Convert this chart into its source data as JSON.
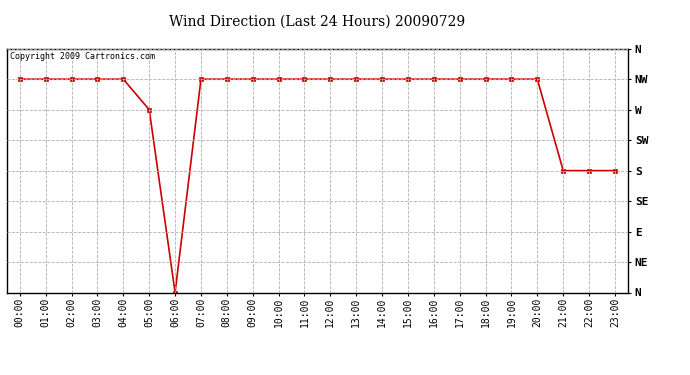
{
  "title": "Wind Direction (Last 24 Hours) 20090729",
  "copyright_text": "Copyright 2009 Cartronics.com",
  "line_color": "#cc0000",
  "marker": "s",
  "marker_size": 3,
  "background_color": "#ffffff",
  "grid_color": "#b0b0b0",
  "x_labels": [
    "00:00",
    "01:00",
    "02:00",
    "03:00",
    "04:00",
    "05:00",
    "06:00",
    "07:00",
    "08:00",
    "09:00",
    "10:00",
    "11:00",
    "12:00",
    "13:00",
    "14:00",
    "15:00",
    "16:00",
    "17:00",
    "18:00",
    "19:00",
    "20:00",
    "21:00",
    "22:00",
    "23:00"
  ],
  "y_ticks": [
    0,
    45,
    90,
    135,
    180,
    225,
    270,
    315,
    360
  ],
  "y_tick_labels": [
    "N",
    "NE",
    "E",
    "SE",
    "S",
    "SW",
    "W",
    "NW",
    "N"
  ],
  "ylim": [
    0,
    360
  ],
  "data_y": [
    315,
    315,
    315,
    315,
    315,
    270,
    0,
    315,
    315,
    315,
    315,
    315,
    315,
    315,
    315,
    315,
    315,
    315,
    315,
    315,
    315,
    180,
    180,
    180
  ],
  "title_fontsize": 10,
  "copyright_fontsize": 6,
  "tick_fontsize": 7,
  "ytick_fontsize": 8
}
